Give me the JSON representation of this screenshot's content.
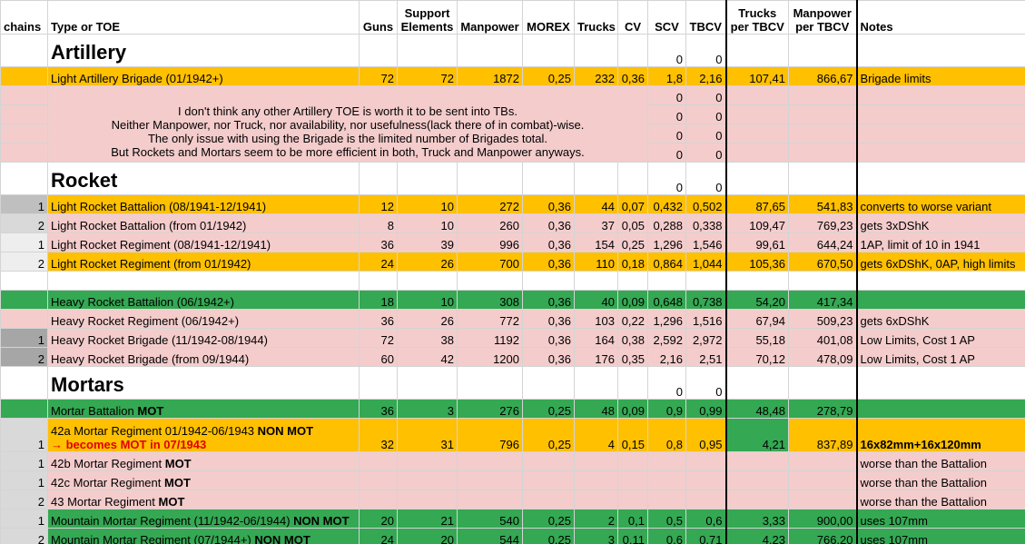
{
  "header": [
    [
      "chains"
    ],
    [
      "Type or TOE"
    ],
    [
      "Guns"
    ],
    [
      "Support",
      "Elements"
    ],
    [
      "Manpower"
    ],
    [
      "MOREX"
    ],
    [
      "Trucks"
    ],
    [
      "CV"
    ],
    [
      "SCV"
    ],
    [
      "TBCV"
    ],
    [
      "Trucks",
      "per TBCV"
    ],
    [
      "Manpower",
      "per TBCV"
    ],
    [
      "Notes"
    ]
  ],
  "rows": [
    {
      "kind": "section",
      "type": [
        {
          "text": "Artillery"
        }
      ],
      "scv": "0",
      "tbcv": "0"
    },
    {
      "kind": "item",
      "color": "#ffc000",
      "type": [
        {
          "text": "Light Artillery Brigade (01/1942+)"
        }
      ],
      "guns": "72",
      "support": "72",
      "manpower": "1872",
      "morex": "0,25",
      "trucks": "232",
      "cv": "0,36",
      "scv": "1,8",
      "tbcv": "2,16",
      "trucks_per_tbcv": "107,41",
      "manpower_per_tbcv": "866,67",
      "notes": "Brigade limits"
    },
    {
      "kind": "note",
      "color": "#f4cccc",
      "note": [
        "I don't think any other Artillery TOE is worth it to be sent into TBs.",
        "Neither Manpower, nor Truck, nor availability, nor usefulness(lack there of in combat)-wise.",
        "The only issue with using the Brigade is the limited number of Brigades total.",
        "But Rockets and Mortars seem to be more efficient in both, Truck and Manpower anyways."
      ],
      "scv": "0",
      "tbcv": "0"
    },
    {
      "kind": "note-cont",
      "color": "#f4cccc",
      "scv": "0",
      "tbcv": "0"
    },
    {
      "kind": "note-cont",
      "color": "#f4cccc",
      "scv": "0",
      "tbcv": "0"
    },
    {
      "kind": "note-cont",
      "color": "#f4cccc",
      "scv": "0",
      "tbcv": "0"
    },
    {
      "kind": "section",
      "type": [
        {
          "text": "Rocket"
        }
      ],
      "scv": "0",
      "tbcv": "0"
    },
    {
      "kind": "item",
      "color": "#ffc000",
      "chains": "1",
      "chains_color": "#bfbfbf",
      "type": [
        {
          "text": "Light Rocket Battalion (08/1941-12/1941)"
        }
      ],
      "guns": "12",
      "support": "10",
      "manpower": "272",
      "morex": "0,36",
      "trucks": "44",
      "cv": "0,07",
      "scv": "0,432",
      "tbcv": "0,502",
      "trucks_per_tbcv": "87,65",
      "manpower_per_tbcv": "541,83",
      "notes": "converts to worse variant"
    },
    {
      "kind": "item",
      "color": "#f4cccc",
      "chains": "2",
      "chains_color": "#d9d9d9",
      "type": [
        {
          "text": "Light Rocket Battalion (from 01/1942)"
        }
      ],
      "guns": "8",
      "support": "10",
      "manpower": "260",
      "morex": "0,36",
      "trucks": "37",
      "cv": "0,05",
      "scv": "0,288",
      "tbcv": "0,338",
      "trucks_per_tbcv": "109,47",
      "manpower_per_tbcv": "769,23",
      "notes": "gets 3xDShK"
    },
    {
      "kind": "item",
      "color": "#f4cccc",
      "chains": "1",
      "chains_color": "#eeeeee",
      "type": [
        {
          "text": "Light Rocket Regiment (08/1941-12/1941)"
        }
      ],
      "guns": "36",
      "support": "39",
      "manpower": "996",
      "morex": "0,36",
      "trucks": "154",
      "cv": "0,25",
      "scv": "1,296",
      "tbcv": "1,546",
      "trucks_per_tbcv": "99,61",
      "manpower_per_tbcv": "644,24",
      "notes": "1AP, limit of 10 in 1941"
    },
    {
      "kind": "item",
      "color": "#ffc000",
      "chains": "2",
      "chains_color": "#eeeeee",
      "type": [
        {
          "text": "Light Rocket Regiment (from 01/1942)"
        }
      ],
      "guns": "24",
      "support": "26",
      "manpower": "700",
      "morex": "0,36",
      "trucks": "110",
      "cv": "0,18",
      "scv": "0,864",
      "tbcv": "1,044",
      "trucks_per_tbcv": "105,36",
      "manpower_per_tbcv": "670,50",
      "notes": "gets 6xDShK, 0AP, high limits"
    },
    {
      "kind": "item",
      "color": "#ffffff"
    },
    {
      "kind": "item",
      "color": "#34a853",
      "type": [
        {
          "text": "Heavy Rocket Battalion (06/1942+)"
        }
      ],
      "guns": "18",
      "support": "10",
      "manpower": "308",
      "morex": "0,36",
      "trucks": "40",
      "cv": "0,09",
      "scv": "0,648",
      "tbcv": "0,738",
      "trucks_per_tbcv": "54,20",
      "manpower_per_tbcv": "417,34"
    },
    {
      "kind": "item",
      "color": "#f4cccc",
      "type": [
        {
          "text": "Heavy Rocket Regiment (06/1942+)"
        }
      ],
      "guns": "36",
      "support": "26",
      "manpower": "772",
      "morex": "0,36",
      "trucks": "103",
      "cv": "0,22",
      "scv": "1,296",
      "tbcv": "1,516",
      "trucks_per_tbcv": "67,94",
      "manpower_per_tbcv": "509,23",
      "notes": "gets 6xDShK"
    },
    {
      "kind": "item",
      "color": "#f4cccc",
      "chains": "1",
      "chains_color": "#a6a6a6",
      "type": [
        {
          "text": "Heavy Rocket Brigade (11/1942-08/1944)"
        }
      ],
      "guns": "72",
      "support": "38",
      "manpower": "1192",
      "morex": "0,36",
      "trucks": "164",
      "cv": "0,38",
      "scv": "2,592",
      "tbcv": "2,972",
      "trucks_per_tbcv": "55,18",
      "manpower_per_tbcv": "401,08",
      "notes": "Low Limits, Cost 1 AP"
    },
    {
      "kind": "item",
      "color": "#f4cccc",
      "chains": "2",
      "chains_color": "#a6a6a6",
      "type": [
        {
          "text": "Heavy Rocket Brigade (from 09/1944)"
        }
      ],
      "guns": "60",
      "support": "42",
      "manpower": "1200",
      "morex": "0,36",
      "trucks": "176",
      "cv": "0,35",
      "scv": "2,16",
      "tbcv": "2,51",
      "trucks_per_tbcv": "70,12",
      "manpower_per_tbcv": "478,09",
      "notes": "Low Limits, Cost 1 AP"
    },
    {
      "kind": "section",
      "type": [
        {
          "text": "Mortars"
        }
      ],
      "scv": "0",
      "tbcv": "0"
    },
    {
      "kind": "item",
      "color": "#34a853",
      "type": [
        {
          "text": "Mortar Battalion "
        },
        {
          "text": "MOT",
          "bold": true
        }
      ],
      "guns": "36",
      "support": "3",
      "manpower": "276",
      "morex": "0,25",
      "trucks": "48",
      "cv": "0,09",
      "scv": "0,9",
      "tbcv": "0,99",
      "trucks_per_tbcv": "48,48",
      "manpower_per_tbcv": "278,79"
    },
    {
      "kind": "double",
      "color": "#ffc000",
      "chains": "1",
      "chains_color": "#d9d9d9",
      "type": [
        {
          "text": "42a Mortar Regiment 01/1942-06/1943 "
        },
        {
          "text": "NON MOT",
          "bold": true
        },
        {
          "text": "→ becomes MOT in 07/1943",
          "bold": true,
          "color": "#e00000",
          "newline": true
        }
      ],
      "guns": "32",
      "support": "31",
      "manpower": "796",
      "morex": "0,25",
      "trucks": "4",
      "cv": "0,15",
      "scv": "0,8",
      "tbcv": "0,95",
      "trucks_per_tbcv": "4,21",
      "manpower_per_tbcv": "837,89",
      "notes": "16x82mm+16x120mm",
      "notes_bold": true,
      "cell_colors": {
        "trucks_per_tbcv": "#34a853"
      }
    },
    {
      "kind": "item",
      "color": "#f4cccc",
      "chains": "1",
      "chains_color": "#d9d9d9",
      "type": [
        {
          "text": "42b Mortar Regiment "
        },
        {
          "text": "MOT",
          "bold": true
        }
      ],
      "notes": "worse than the Battalion"
    },
    {
      "kind": "item",
      "color": "#f4cccc",
      "chains": "1",
      "chains_color": "#d9d9d9",
      "type": [
        {
          "text": "42c Mortar Regiment "
        },
        {
          "text": "MOT",
          "bold": true
        }
      ],
      "notes": "worse than the Battalion"
    },
    {
      "kind": "item",
      "color": "#f4cccc",
      "chains": "2",
      "chains_color": "#d9d9d9",
      "type": [
        {
          "text": "43 Mortar Regiment "
        },
        {
          "text": "MOT",
          "bold": true
        }
      ],
      "notes": "worse than the Battalion"
    },
    {
      "kind": "item",
      "color": "#34a853",
      "chains": "1",
      "chains_color": "#d9d9d9",
      "type": [
        {
          "text": "Mountain Mortar Regiment (11/1942-06/1944) "
        },
        {
          "text": "NON MOT",
          "bold": true
        }
      ],
      "guns": "20",
      "support": "21",
      "manpower": "540",
      "morex": "0,25",
      "trucks": "2",
      "cv": "0,1",
      "scv": "0,5",
      "tbcv": "0,6",
      "trucks_per_tbcv": "3,33",
      "manpower_per_tbcv": "900,00",
      "notes": "uses 107mm"
    },
    {
      "kind": "item",
      "color": "#34a853",
      "chains": "2",
      "chains_color": "#d9d9d9",
      "type": [
        {
          "text": "Mountain Mortar Regiment (07/1944+) "
        },
        {
          "text": "NON MOT",
          "bold": true
        }
      ],
      "guns": "24",
      "support": "20",
      "manpower": "544",
      "morex": "0,25",
      "trucks": "3",
      "cv": "0,11",
      "scv": "0,6",
      "tbcv": "0,71",
      "trucks_per_tbcv": "4,23",
      "manpower_per_tbcv": "766,20",
      "notes": "uses 107mm"
    }
  ]
}
